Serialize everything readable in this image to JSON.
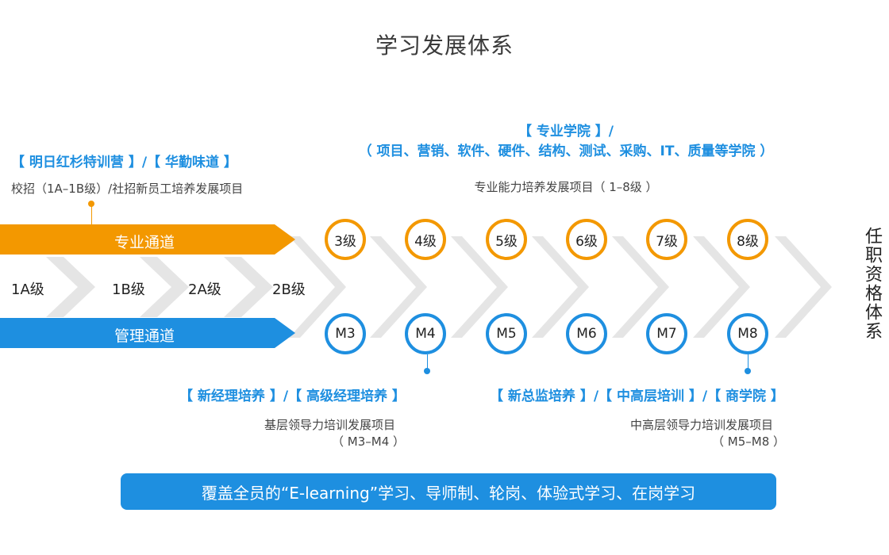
{
  "title": "学习发展体系",
  "colors": {
    "orange": "#f39800",
    "blue": "#1e8fe0",
    "chevron": "#e5e5e5"
  },
  "top_left": {
    "heading": "【 明日红杉特训营 】/【 华勤味道 】",
    "note": "校招（1A–1B级）/社招新员工培养发展项目"
  },
  "top_right": {
    "heading_line1": "【 专业学院 】/",
    "heading_line2": "（ 项目、营销、软件、硬件、结构、测试、采购、IT、质量等学院 ）",
    "note": "专业能力培养发展项目（ 1–8级 ）"
  },
  "lanes": {
    "professional": "专业通道",
    "management": "管理通道"
  },
  "base_levels": [
    "1A级",
    "1B级",
    "2A级",
    "2B级"
  ],
  "professional_levels": [
    "3级",
    "4级",
    "5级",
    "6级",
    "7级",
    "8级"
  ],
  "management_levels": [
    "M3",
    "M4",
    "M5",
    "M6",
    "M7",
    "M8"
  ],
  "right_side_label": "任职资格体系",
  "bottom_left": {
    "heading": "【 新经理培养 】/【 高级经理培养 】",
    "note_line1": "基层领导力培训发展项目",
    "note_line2": "（ M3–M4 ）"
  },
  "bottom_right": {
    "heading": "【 新总监培养 】/【 中高层培训 】/【 商学院 】",
    "note_line1": "中高层领导力培训发展项目",
    "note_line2": "（ M5–M8 ）"
  },
  "banner": "覆盖全员的“E-learning”学习、导师制、轮岗、体验式学习、在岗学习"
}
